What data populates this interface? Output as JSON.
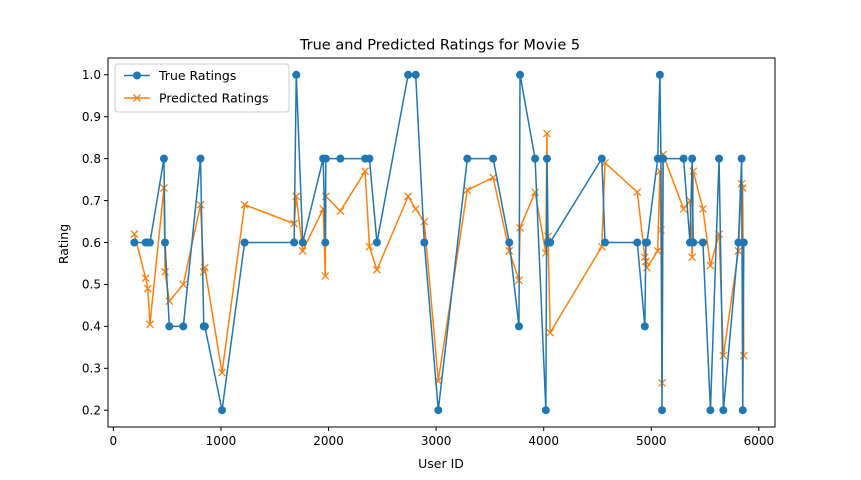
{
  "chart_data": {
    "type": "line",
    "title": "True and Predicted Ratings for Movie 5",
    "xlabel": "User ID",
    "ylabel": "Rating",
    "xlim": [
      -50,
      6150
    ],
    "ylim": [
      0.16,
      1.04
    ],
    "xticks": [
      0,
      1000,
      2000,
      3000,
      4000,
      5000,
      6000
    ],
    "yticks": [
      0.2,
      0.3,
      0.4,
      0.5,
      0.6,
      0.7,
      0.8,
      0.9,
      1.0
    ],
    "xtick_labels": [
      "0",
      "1000",
      "2000",
      "3000",
      "4000",
      "5000",
      "6000"
    ],
    "ytick_labels": [
      "0.2",
      "0.3",
      "0.4",
      "0.5",
      "0.6",
      "0.7",
      "0.8",
      "0.9",
      "1.0"
    ],
    "grid": false,
    "legend_position": "top-left",
    "x": [
      195,
      300,
      320,
      340,
      470,
      480,
      520,
      650,
      810,
      840,
      850,
      1010,
      1220,
      1680,
      1700,
      1760,
      1950,
      1970,
      1975,
      2110,
      2340,
      2380,
      2450,
      2740,
      2810,
      2890,
      3020,
      3290,
      3530,
      3680,
      3770,
      3780,
      3920,
      4020,
      4030,
      4040,
      4060,
      4540,
      4570,
      4870,
      4940,
      4950,
      4960,
      5060,
      5080,
      5090,
      5100,
      5110,
      5300,
      5360,
      5380,
      5390,
      5480,
      5550,
      5630,
      5670,
      5810,
      5840,
      5850,
      5860
    ],
    "series": [
      {
        "name": "True Ratings",
        "color": "#1f77b4",
        "marker": "circle",
        "values": [
          0.6,
          0.6,
          0.6,
          0.6,
          0.8,
          0.6,
          0.4,
          0.4,
          0.8,
          0.4,
          0.4,
          0.2,
          0.6,
          0.6,
          1.0,
          0.6,
          0.8,
          0.6,
          0.8,
          0.8,
          0.8,
          0.8,
          0.6,
          1.0,
          1.0,
          0.6,
          0.2,
          0.8,
          0.8,
          0.6,
          0.4,
          1.0,
          0.8,
          0.2,
          0.8,
          0.6,
          0.6,
          0.8,
          0.6,
          0.6,
          0.4,
          0.6,
          0.6,
          0.8,
          1.0,
          0.8,
          0.2,
          0.8,
          0.8,
          0.6,
          0.8,
          0.6,
          0.6,
          0.2,
          0.8,
          0.2,
          0.6,
          0.8,
          0.2,
          0.6
        ]
      },
      {
        "name": "Predicted Ratings",
        "color": "#ff7f0e",
        "marker": "x",
        "values": [
          0.62,
          0.515,
          0.49,
          0.405,
          0.73,
          0.53,
          0.46,
          0.5,
          0.69,
          0.53,
          0.54,
          0.29,
          0.69,
          0.645,
          0.71,
          0.58,
          0.68,
          0.52,
          0.71,
          0.675,
          0.77,
          0.59,
          0.535,
          0.71,
          0.68,
          0.65,
          0.27,
          0.725,
          0.755,
          0.58,
          0.51,
          0.635,
          0.72,
          0.575,
          0.86,
          0.615,
          0.385,
          0.59,
          0.79,
          0.72,
          0.565,
          0.555,
          0.54,
          0.58,
          0.77,
          0.63,
          0.265,
          0.81,
          0.68,
          0.7,
          0.565,
          0.77,
          0.68,
          0.545,
          0.62,
          0.33,
          0.58,
          0.74,
          0.73,
          0.33
        ]
      }
    ]
  }
}
